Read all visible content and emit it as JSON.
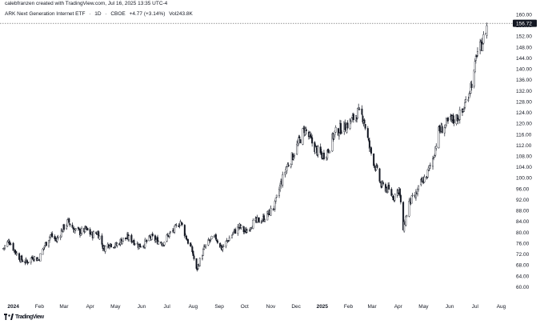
{
  "header": {
    "credit": "calebfranzen created with TradingView.com, Jul 16, 2025 13:35 UTC-4"
  },
  "symbol": {
    "name": "ARK Next Generation Internet ETF",
    "timeframe": "1D",
    "exchange": "CBOE",
    "change": "+4.77 (+3.14%)",
    "volume": "Vol243.8K"
  },
  "price_label": "156.72",
  "footer": {
    "brand": "TradingView",
    "logo_icon": "tradingview-logo-icon"
  },
  "colors": {
    "candle": "#131722",
    "grid": "#f0f3fa",
    "axis_text": "#131722",
    "price_line": "#555555"
  },
  "chart_data": {
    "type": "candlestick",
    "title": "",
    "xlabel": "",
    "ylabel": "",
    "ylim": [
      56,
      160
    ],
    "y_ticks": [
      "160.00",
      "156.00",
      "152.00",
      "148.00",
      "144.00",
      "140.00",
      "136.00",
      "132.00",
      "128.00",
      "124.00",
      "120.00",
      "116.00",
      "112.00",
      "108.00",
      "104.00",
      "100.00",
      "96.00",
      "92.00",
      "88.00",
      "84.00",
      "80.00",
      "76.00",
      "72.00",
      "68.00",
      "64.00",
      "60.00"
    ],
    "x_ticks": [
      {
        "label": "2024",
        "date": "2024-01-01",
        "bold": true
      },
      {
        "label": "Feb",
        "date": "2024-02-01"
      },
      {
        "label": "Mar",
        "date": "2024-03-01"
      },
      {
        "label": "Apr",
        "date": "2024-04-01"
      },
      {
        "label": "May",
        "date": "2024-05-01"
      },
      {
        "label": "Jun",
        "date": "2024-06-01"
      },
      {
        "label": "Jul",
        "date": "2024-07-01"
      },
      {
        "label": "Aug",
        "date": "2024-08-01"
      },
      {
        "label": "Sep",
        "date": "2024-09-01"
      },
      {
        "label": "Oct",
        "date": "2024-10-01"
      },
      {
        "label": "Nov",
        "date": "2024-11-01"
      },
      {
        "label": "Dec",
        "date": "2024-12-01"
      },
      {
        "label": "2025",
        "date": "2025-01-01",
        "bold": true
      },
      {
        "label": "Feb",
        "date": "2025-02-01"
      },
      {
        "label": "Mar",
        "date": "2025-03-01"
      },
      {
        "label": "Apr",
        "date": "2025-04-01"
      },
      {
        "label": "May",
        "date": "2025-05-01"
      },
      {
        "label": "Jun",
        "date": "2025-06-01"
      },
      {
        "label": "Jul",
        "date": "2025-07-01"
      },
      {
        "label": "Aug",
        "date": "2025-08-01"
      }
    ],
    "x_range": [
      "2023-12-20",
      "2025-08-10"
    ],
    "last_price": 156.72,
    "series": [
      {
        "date": "2023-12-20",
        "close": 74
      },
      {
        "date": "2023-12-27",
        "close": 77
      },
      {
        "date": "2024-01-03",
        "close": 73
      },
      {
        "date": "2024-01-10",
        "close": 70
      },
      {
        "date": "2024-01-17",
        "close": 69
      },
      {
        "date": "2024-01-24",
        "close": 71
      },
      {
        "date": "2024-01-31",
        "close": 70
      },
      {
        "date": "2024-02-07",
        "close": 75
      },
      {
        "date": "2024-02-14",
        "close": 79
      },
      {
        "date": "2024-02-21",
        "close": 77
      },
      {
        "date": "2024-02-28",
        "close": 81
      },
      {
        "date": "2024-03-06",
        "close": 84
      },
      {
        "date": "2024-03-13",
        "close": 81
      },
      {
        "date": "2024-03-20",
        "close": 80
      },
      {
        "date": "2024-03-27",
        "close": 81
      },
      {
        "date": "2024-04-03",
        "close": 79
      },
      {
        "date": "2024-04-10",
        "close": 80
      },
      {
        "date": "2024-04-17",
        "close": 74
      },
      {
        "date": "2024-04-24",
        "close": 76
      },
      {
        "date": "2024-05-01",
        "close": 75
      },
      {
        "date": "2024-05-08",
        "close": 77
      },
      {
        "date": "2024-05-15",
        "close": 78
      },
      {
        "date": "2024-05-22",
        "close": 77
      },
      {
        "date": "2024-05-29",
        "close": 75
      },
      {
        "date": "2024-06-05",
        "close": 76
      },
      {
        "date": "2024-06-12",
        "close": 78
      },
      {
        "date": "2024-06-19",
        "close": 77
      },
      {
        "date": "2024-06-26",
        "close": 76
      },
      {
        "date": "2024-07-03",
        "close": 79
      },
      {
        "date": "2024-07-10",
        "close": 81
      },
      {
        "date": "2024-07-17",
        "close": 84
      },
      {
        "date": "2024-07-24",
        "close": 78
      },
      {
        "date": "2024-07-31",
        "close": 73
      },
      {
        "date": "2024-08-05",
        "close": 66
      },
      {
        "date": "2024-08-14",
        "close": 74
      },
      {
        "date": "2024-08-21",
        "close": 77
      },
      {
        "date": "2024-08-28",
        "close": 78
      },
      {
        "date": "2024-09-04",
        "close": 74
      },
      {
        "date": "2024-09-11",
        "close": 77
      },
      {
        "date": "2024-09-18",
        "close": 80
      },
      {
        "date": "2024-09-25",
        "close": 82
      },
      {
        "date": "2024-10-02",
        "close": 80
      },
      {
        "date": "2024-10-09",
        "close": 83
      },
      {
        "date": "2024-10-16",
        "close": 84
      },
      {
        "date": "2024-10-23",
        "close": 85
      },
      {
        "date": "2024-10-30",
        "close": 87
      },
      {
        "date": "2024-11-06",
        "close": 90
      },
      {
        "date": "2024-11-13",
        "close": 98
      },
      {
        "date": "2024-11-20",
        "close": 104
      },
      {
        "date": "2024-11-27",
        "close": 108
      },
      {
        "date": "2024-12-04",
        "close": 113
      },
      {
        "date": "2024-12-11",
        "close": 118
      },
      {
        "date": "2024-12-18",
        "close": 114
      },
      {
        "date": "2024-12-25",
        "close": 110
      },
      {
        "date": "2025-01-01",
        "close": 108
      },
      {
        "date": "2025-01-08",
        "close": 110
      },
      {
        "date": "2025-01-15",
        "close": 116
      },
      {
        "date": "2025-01-22",
        "close": 118
      },
      {
        "date": "2025-01-29",
        "close": 119
      },
      {
        "date": "2025-02-05",
        "close": 121
      },
      {
        "date": "2025-02-12",
        "close": 124
      },
      {
        "date": "2025-02-19",
        "close": 122
      },
      {
        "date": "2025-02-26",
        "close": 111
      },
      {
        "date": "2025-03-05",
        "close": 104
      },
      {
        "date": "2025-03-12",
        "close": 97
      },
      {
        "date": "2025-03-19",
        "close": 96
      },
      {
        "date": "2025-03-26",
        "close": 93
      },
      {
        "date": "2025-04-02",
        "close": 96
      },
      {
        "date": "2025-04-07",
        "close": 81
      },
      {
        "date": "2025-04-14",
        "close": 91
      },
      {
        "date": "2025-04-21",
        "close": 93
      },
      {
        "date": "2025-04-28",
        "close": 98
      },
      {
        "date": "2025-05-05",
        "close": 101
      },
      {
        "date": "2025-05-12",
        "close": 107
      },
      {
        "date": "2025-05-19",
        "close": 117
      },
      {
        "date": "2025-05-26",
        "close": 119
      },
      {
        "date": "2025-06-02",
        "close": 121
      },
      {
        "date": "2025-06-09",
        "close": 122
      },
      {
        "date": "2025-06-16",
        "close": 124
      },
      {
        "date": "2025-06-23",
        "close": 131
      },
      {
        "date": "2025-06-30",
        "close": 138
      },
      {
        "date": "2025-07-03",
        "close": 146
      },
      {
        "date": "2025-07-08",
        "close": 148
      },
      {
        "date": "2025-07-11",
        "close": 151
      },
      {
        "date": "2025-07-16",
        "close": 156.72
      }
    ]
  }
}
